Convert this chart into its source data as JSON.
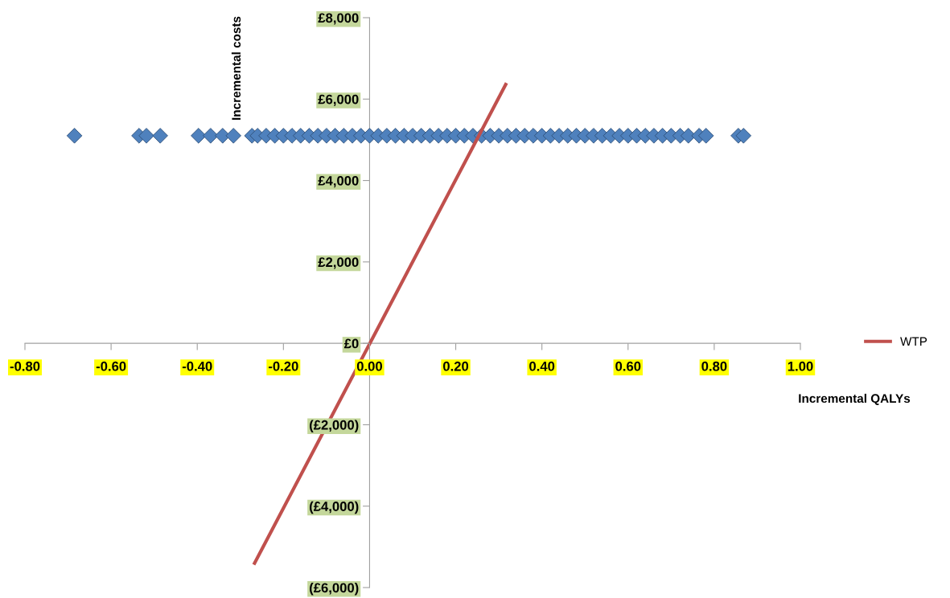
{
  "chart_data": {
    "type": "scatter",
    "xlabel": "Incremental QALYs",
    "ylabel": "Incremental costs",
    "xlim": [
      -0.8,
      1.0
    ],
    "ylim": [
      -6000,
      8000
    ],
    "xticks": [
      {
        "value": -0.8,
        "label": "-0.80"
      },
      {
        "value": -0.6,
        "label": "-0.60"
      },
      {
        "value": -0.4,
        "label": "-0.40"
      },
      {
        "value": -0.2,
        "label": "-0.20"
      },
      {
        "value": 0,
        "label": "0.00"
      },
      {
        "value": 0.2,
        "label": "0.20"
      },
      {
        "value": 0.4,
        "label": "0.40"
      },
      {
        "value": 0.6,
        "label": "0.60"
      },
      {
        "value": 0.8,
        "label": "0.80"
      },
      {
        "value": 1.0,
        "label": "1.00"
      }
    ],
    "yticks": [
      {
        "value": -6000,
        "label": "(£6,000)"
      },
      {
        "value": -4000,
        "label": "(£4,000)"
      },
      {
        "value": -2000,
        "label": "(£2,000)"
      },
      {
        "value": 0,
        "label": "£0"
      },
      {
        "value": 2000,
        "label": "£2,000"
      },
      {
        "value": 4000,
        "label": "£4,000"
      },
      {
        "value": 6000,
        "label": "£6,000"
      },
      {
        "value": 8000,
        "label": "£8,000"
      }
    ],
    "grid": false,
    "legend": "right",
    "series": [
      {
        "marker": "diamond",
        "color": "#4f81bd",
        "x": [
          -0.685,
          -0.535,
          -0.518,
          -0.486,
          -0.397,
          -0.369,
          -0.341,
          -0.316,
          -0.273,
          -0.26,
          -0.24,
          -0.22,
          -0.2,
          -0.18,
          -0.16,
          -0.14,
          -0.12,
          -0.1,
          -0.08,
          -0.06,
          -0.04,
          -0.02,
          0.0,
          0.02,
          0.04,
          0.06,
          0.08,
          0.1,
          0.12,
          0.14,
          0.16,
          0.18,
          0.2,
          0.22,
          0.24,
          0.26,
          0.28,
          0.3,
          0.32,
          0.34,
          0.36,
          0.38,
          0.4,
          0.42,
          0.44,
          0.46,
          0.48,
          0.5,
          0.52,
          0.54,
          0.56,
          0.58,
          0.6,
          0.62,
          0.64,
          0.66,
          0.68,
          0.7,
          0.721,
          0.74,
          0.765,
          0.781,
          0.856,
          0.868
        ],
        "values": [
          5100,
          5100,
          5100,
          5100,
          5100,
          5100,
          5100,
          5100,
          5100,
          5100,
          5100,
          5100,
          5100,
          5100,
          5100,
          5100,
          5100,
          5100,
          5100,
          5100,
          5100,
          5100,
          5100,
          5100,
          5100,
          5100,
          5100,
          5100,
          5100,
          5100,
          5100,
          5100,
          5100,
          5100,
          5100,
          5100,
          5100,
          5100,
          5100,
          5100,
          5100,
          5100,
          5100,
          5100,
          5100,
          5100,
          5100,
          5100,
          5100,
          5100,
          5100,
          5100,
          5100,
          5100,
          5100,
          5100,
          5100,
          5100,
          5100,
          5100,
          5100,
          5100,
          5100,
          5100
        ]
      },
      {
        "type": "line",
        "name": "WTP",
        "color": "#c0504d",
        "x": [
          -0.267,
          0.316
        ],
        "values": [
          -5400,
          6360
        ]
      }
    ]
  }
}
